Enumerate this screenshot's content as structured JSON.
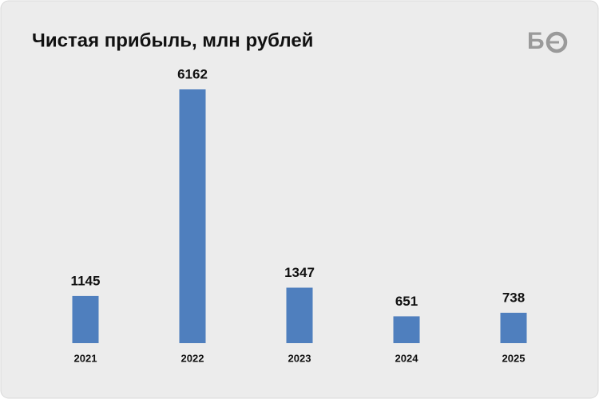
{
  "chart_data": {
    "type": "bar",
    "title": "Чистая прибыль, млн рублей",
    "logo": "Б",
    "categories": [
      "2021",
      "2022",
      "2023",
      "2024",
      "2025"
    ],
    "values": [
      1145,
      6162,
      1347,
      651,
      738
    ],
    "color": "#4f7fbe"
  }
}
